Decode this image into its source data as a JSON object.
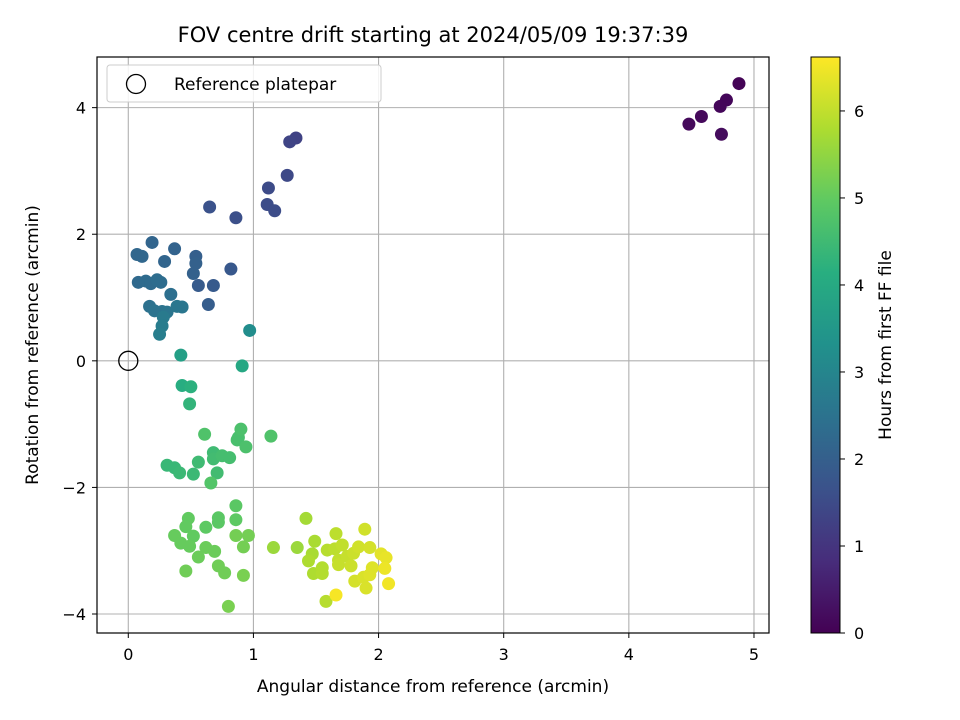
{
  "chart_data": {
    "type": "scatter",
    "title": "FOV centre drift starting at 2024/05/09 19:37:39",
    "xlabel": "Angular distance from reference (arcmin)",
    "ylabel": "Rotation from reference (arcmin)",
    "xlim": [
      -0.25,
      5.12
    ],
    "ylim": [
      -4.3,
      4.8
    ],
    "xticks": [
      0,
      1,
      2,
      3,
      4,
      5
    ],
    "yticks": [
      -4,
      -2,
      0,
      2,
      4
    ],
    "grid": true,
    "legend": {
      "placement": "top-left",
      "entries": [
        "Reference platepar"
      ]
    },
    "reference_point": {
      "x": 0,
      "y": 0
    },
    "colorbar": {
      "label": "Hours from first FF file",
      "range": [
        0,
        6.62
      ],
      "ticks": [
        0,
        1,
        2,
        3,
        4,
        5,
        6
      ],
      "colormap": "viridis"
    },
    "points": [
      {
        "x": 4.88,
        "y": 4.38,
        "t": 0.05
      },
      {
        "x": 4.78,
        "y": 4.12,
        "t": 0.1
      },
      {
        "x": 4.73,
        "y": 4.02,
        "t": 0.1
      },
      {
        "x": 4.58,
        "y": 3.86,
        "t": 0.15
      },
      {
        "x": 4.48,
        "y": 3.74,
        "t": 0.15
      },
      {
        "x": 4.74,
        "y": 3.58,
        "t": 0.2
      },
      {
        "x": 1.34,
        "y": 3.52,
        "t": 1.3
      },
      {
        "x": 1.29,
        "y": 3.46,
        "t": 1.35
      },
      {
        "x": 1.27,
        "y": 2.93,
        "t": 1.45
      },
      {
        "x": 1.12,
        "y": 2.73,
        "t": 1.5
      },
      {
        "x": 1.11,
        "y": 2.47,
        "t": 1.55
      },
      {
        "x": 1.17,
        "y": 2.37,
        "t": 1.55
      },
      {
        "x": 0.86,
        "y": 2.26,
        "t": 1.6
      },
      {
        "x": 0.65,
        "y": 2.43,
        "t": 1.65
      },
      {
        "x": 0.82,
        "y": 1.45,
        "t": 1.8
      },
      {
        "x": 0.68,
        "y": 1.19,
        "t": 1.85
      },
      {
        "x": 0.56,
        "y": 1.19,
        "t": 1.9
      },
      {
        "x": 0.64,
        "y": 0.89,
        "t": 1.95
      },
      {
        "x": 0.54,
        "y": 1.65,
        "t": 2.0
      },
      {
        "x": 0.54,
        "y": 1.54,
        "t": 2.05
      },
      {
        "x": 0.52,
        "y": 1.38,
        "t": 2.05
      },
      {
        "x": 0.37,
        "y": 1.77,
        "t": 2.1
      },
      {
        "x": 0.29,
        "y": 1.57,
        "t": 2.15
      },
      {
        "x": 0.19,
        "y": 1.87,
        "t": 2.15
      },
      {
        "x": 0.07,
        "y": 1.68,
        "t": 2.2
      },
      {
        "x": 0.11,
        "y": 1.65,
        "t": 2.2
      },
      {
        "x": 0.08,
        "y": 1.24,
        "t": 2.25
      },
      {
        "x": 0.14,
        "y": 1.26,
        "t": 2.3
      },
      {
        "x": 0.18,
        "y": 1.22,
        "t": 2.3
      },
      {
        "x": 0.23,
        "y": 1.28,
        "t": 2.35
      },
      {
        "x": 0.26,
        "y": 1.24,
        "t": 2.35
      },
      {
        "x": 0.34,
        "y": 1.05,
        "t": 2.4
      },
      {
        "x": 0.17,
        "y": 0.86,
        "t": 2.45
      },
      {
        "x": 0.21,
        "y": 0.79,
        "t": 2.5
      },
      {
        "x": 0.27,
        "y": 0.78,
        "t": 2.5
      },
      {
        "x": 0.31,
        "y": 0.77,
        "t": 2.55
      },
      {
        "x": 0.43,
        "y": 0.85,
        "t": 2.6
      },
      {
        "x": 0.39,
        "y": 0.86,
        "t": 2.6
      },
      {
        "x": 0.28,
        "y": 0.69,
        "t": 2.7
      },
      {
        "x": 0.27,
        "y": 0.55,
        "t": 2.75
      },
      {
        "x": 0.25,
        "y": 0.42,
        "t": 2.8
      },
      {
        "x": 0.97,
        "y": 0.48,
        "t": 3.2
      },
      {
        "x": 0.42,
        "y": 0.09,
        "t": 3.7
      },
      {
        "x": 0.91,
        "y": -0.08,
        "t": 3.95
      },
      {
        "x": 0.43,
        "y": -0.39,
        "t": 4.1
      },
      {
        "x": 0.5,
        "y": -0.41,
        "t": 4.2
      },
      {
        "x": 0.49,
        "y": -0.68,
        "t": 4.3
      },
      {
        "x": 0.31,
        "y": -1.65,
        "t": 4.4
      },
      {
        "x": 0.37,
        "y": -1.69,
        "t": 4.4
      },
      {
        "x": 0.41,
        "y": -1.77,
        "t": 4.45
      },
      {
        "x": 0.52,
        "y": -1.79,
        "t": 4.45
      },
      {
        "x": 0.56,
        "y": -1.6,
        "t": 4.5
      },
      {
        "x": 0.68,
        "y": -1.45,
        "t": 4.5
      },
      {
        "x": 0.68,
        "y": -1.55,
        "t": 4.55
      },
      {
        "x": 0.71,
        "y": -1.77,
        "t": 4.55
      },
      {
        "x": 0.75,
        "y": -1.5,
        "t": 4.6
      },
      {
        "x": 0.81,
        "y": -1.53,
        "t": 4.6
      },
      {
        "x": 0.87,
        "y": -1.25,
        "t": 4.65
      },
      {
        "x": 0.88,
        "y": -1.21,
        "t": 4.65
      },
      {
        "x": 0.9,
        "y": -1.08,
        "t": 4.7
      },
      {
        "x": 0.94,
        "y": -1.36,
        "t": 4.7
      },
      {
        "x": 1.14,
        "y": -1.19,
        "t": 4.75
      },
      {
        "x": 0.61,
        "y": -1.16,
        "t": 4.75
      },
      {
        "x": 0.66,
        "y": -1.93,
        "t": 4.8
      },
      {
        "x": 0.86,
        "y": -2.29,
        "t": 4.9
      },
      {
        "x": 0.72,
        "y": -2.48,
        "t": 4.9
      },
      {
        "x": 0.72,
        "y": -2.55,
        "t": 4.9
      },
      {
        "x": 0.86,
        "y": -2.51,
        "t": 4.95
      },
      {
        "x": 0.62,
        "y": -2.63,
        "t": 4.95
      },
      {
        "x": 0.48,
        "y": -2.49,
        "t": 5.0
      },
      {
        "x": 0.46,
        "y": -2.62,
        "t": 5.0
      },
      {
        "x": 0.52,
        "y": -2.77,
        "t": 5.0
      },
      {
        "x": 0.37,
        "y": -2.76,
        "t": 5.05
      },
      {
        "x": 0.42,
        "y": -2.88,
        "t": 5.05
      },
      {
        "x": 0.49,
        "y": -2.93,
        "t": 5.05
      },
      {
        "x": 0.62,
        "y": -2.95,
        "t": 5.1
      },
      {
        "x": 0.69,
        "y": -3.01,
        "t": 5.1
      },
      {
        "x": 0.56,
        "y": -3.1,
        "t": 5.1
      },
      {
        "x": 0.46,
        "y": -3.32,
        "t": 5.15
      },
      {
        "x": 0.72,
        "y": -3.24,
        "t": 5.15
      },
      {
        "x": 0.77,
        "y": -3.35,
        "t": 5.15
      },
      {
        "x": 0.86,
        "y": -2.76,
        "t": 5.2
      },
      {
        "x": 0.96,
        "y": -2.76,
        "t": 5.2
      },
      {
        "x": 0.92,
        "y": -2.94,
        "t": 5.2
      },
      {
        "x": 0.92,
        "y": -3.39,
        "t": 5.25
      },
      {
        "x": 0.8,
        "y": -3.88,
        "t": 5.25
      },
      {
        "x": 1.16,
        "y": -2.95,
        "t": 5.6
      },
      {
        "x": 1.35,
        "y": -2.95,
        "t": 5.6
      },
      {
        "x": 1.42,
        "y": -2.49,
        "t": 5.7
      },
      {
        "x": 1.49,
        "y": -2.85,
        "t": 5.75
      },
      {
        "x": 1.47,
        "y": -3.05,
        "t": 5.75
      },
      {
        "x": 1.44,
        "y": -3.16,
        "t": 5.8
      },
      {
        "x": 1.48,
        "y": -3.36,
        "t": 5.8
      },
      {
        "x": 1.55,
        "y": -3.36,
        "t": 5.85
      },
      {
        "x": 1.55,
        "y": -3.27,
        "t": 5.85
      },
      {
        "x": 1.58,
        "y": -3.8,
        "t": 5.9
      },
      {
        "x": 1.59,
        "y": -2.99,
        "t": 5.9
      },
      {
        "x": 1.66,
        "y": -2.73,
        "t": 5.95
      },
      {
        "x": 1.65,
        "y": -2.97,
        "t": 5.95
      },
      {
        "x": 1.71,
        "y": -2.91,
        "t": 6.0
      },
      {
        "x": 1.68,
        "y": -3.15,
        "t": 6.0
      },
      {
        "x": 1.68,
        "y": -3.22,
        "t": 6.05
      },
      {
        "x": 1.75,
        "y": -3.09,
        "t": 6.05
      },
      {
        "x": 1.78,
        "y": -3.24,
        "t": 6.1
      },
      {
        "x": 1.8,
        "y": -3.04,
        "t": 6.1
      },
      {
        "x": 1.84,
        "y": -2.94,
        "t": 6.15
      },
      {
        "x": 1.89,
        "y": -2.66,
        "t": 6.15
      },
      {
        "x": 1.93,
        "y": -2.95,
        "t": 6.2
      },
      {
        "x": 1.81,
        "y": -3.48,
        "t": 6.2
      },
      {
        "x": 1.88,
        "y": -3.42,
        "t": 6.25
      },
      {
        "x": 1.9,
        "y": -3.59,
        "t": 6.25
      },
      {
        "x": 1.95,
        "y": -3.27,
        "t": 6.3
      },
      {
        "x": 1.93,
        "y": -3.38,
        "t": 6.3
      },
      {
        "x": 2.02,
        "y": -3.05,
        "t": 6.35
      },
      {
        "x": 2.06,
        "y": -3.11,
        "t": 6.4
      },
      {
        "x": 2.05,
        "y": -3.28,
        "t": 6.45
      },
      {
        "x": 2.08,
        "y": -3.52,
        "t": 6.5
      },
      {
        "x": 1.66,
        "y": -3.7,
        "t": 6.55
      }
    ]
  }
}
